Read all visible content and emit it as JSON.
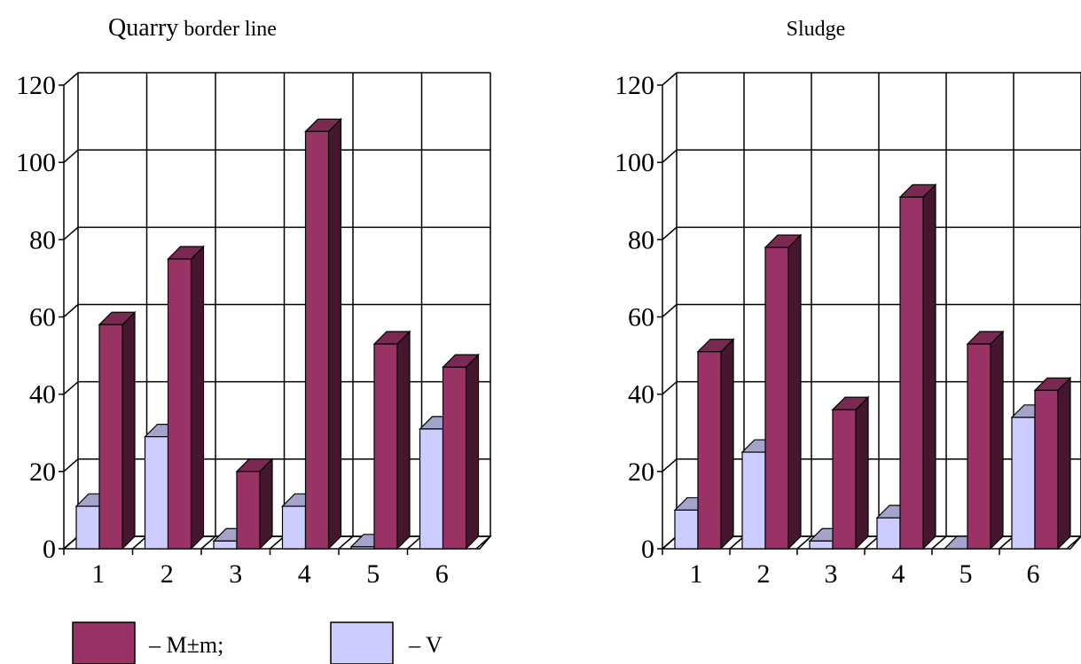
{
  "colors": {
    "m": "#993366",
    "v": "#ccccff",
    "grid": "#000000"
  },
  "legend": [
    {
      "key": "m",
      "label": "– M±m;"
    },
    {
      "key": "v",
      "label": "– V"
    }
  ],
  "chart_data": [
    {
      "type": "bar",
      "title_main": "Quarry",
      "title_rest": " border line",
      "categories": [
        "1",
        "2",
        "3",
        "4",
        "5",
        "6"
      ],
      "ylim": [
        0,
        120
      ],
      "yticks": [
        "0",
        "20",
        "40",
        "60",
        "80",
        "100",
        "120"
      ],
      "series": [
        {
          "name": "V",
          "key": "v",
          "values": [
            11,
            29,
            2,
            11,
            0.5,
            31
          ]
        },
        {
          "name": "M±m",
          "key": "m",
          "values": [
            58,
            75,
            20,
            108,
            53,
            47
          ]
        }
      ]
    },
    {
      "type": "bar",
      "title_main": "Sludge",
      "title_rest": "",
      "categories": [
        "1",
        "2",
        "3",
        "4",
        "5",
        "6"
      ],
      "ylim": [
        0,
        120
      ],
      "yticks": [
        "0",
        "20",
        "40",
        "60",
        "80",
        "100",
        "120"
      ],
      "series": [
        {
          "name": "V",
          "key": "v",
          "values": [
            10,
            25,
            2,
            8,
            0,
            34
          ]
        },
        {
          "name": "M±m",
          "key": "m",
          "values": [
            51,
            78,
            36,
            91,
            53,
            41
          ]
        }
      ]
    }
  ]
}
